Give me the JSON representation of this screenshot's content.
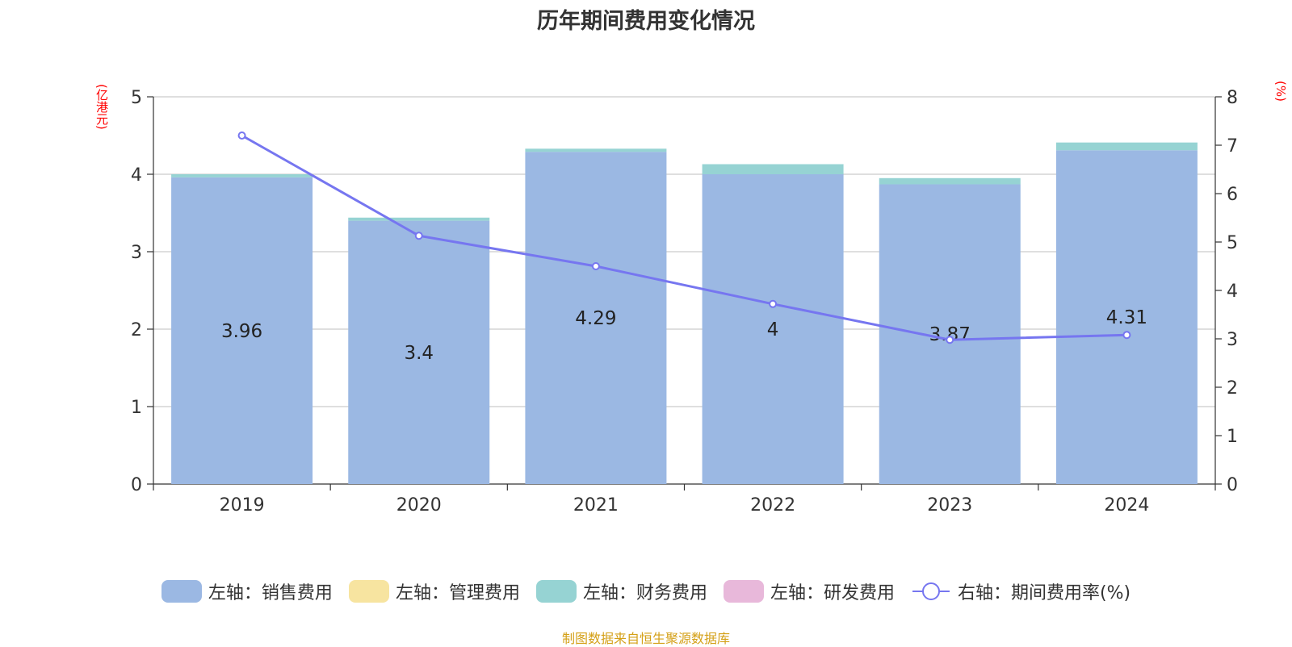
{
  "title": "历年期间费用变化情况",
  "y_left_unit": "(亿港元)",
  "y_right_unit": "(%)",
  "source": "制图数据来自恒生聚源数据库",
  "chart_data": {
    "type": "bar",
    "stacked": true,
    "categories": [
      "2019",
      "2020",
      "2021",
      "2022",
      "2023",
      "2024"
    ],
    "series": [
      {
        "name": "左轴：销售费用",
        "axis": "left",
        "type": "bar",
        "color": "#9bb8e3",
        "values": [
          3.96,
          3.4,
          4.29,
          4.0,
          3.87,
          4.31
        ]
      },
      {
        "name": "左轴：管理费用",
        "axis": "left",
        "type": "bar",
        "color": "#f7e4a0",
        "values": [
          0,
          0,
          0,
          0,
          0,
          0
        ]
      },
      {
        "name": "左轴：财务费用",
        "axis": "left",
        "type": "bar",
        "color": "#96d3d3",
        "values": [
          0.04,
          0.04,
          0.04,
          0.13,
          0.08,
          0.1
        ]
      },
      {
        "name": "左轴：研发费用",
        "axis": "left",
        "type": "bar",
        "color": "#e8b8da",
        "values": [
          0,
          0,
          0,
          0,
          0,
          0
        ]
      },
      {
        "name": "右轴：期间费用率(%)",
        "axis": "right",
        "type": "line",
        "color": "#7676f0",
        "values": [
          7.2,
          5.13,
          4.5,
          3.72,
          2.98,
          3.08
        ]
      }
    ],
    "data_labels": [
      "3.96",
      "3.4",
      "4.29",
      "4",
      "3.87",
      "4.31"
    ],
    "y_left": {
      "min": 0,
      "max": 5,
      "ticks": [
        0,
        1,
        2,
        3,
        4,
        5
      ]
    },
    "y_right": {
      "min": 0,
      "max": 8,
      "ticks": [
        0,
        1,
        2,
        3,
        4,
        5,
        6,
        7,
        8
      ]
    },
    "grid": true,
    "legend_position": "bottom"
  }
}
